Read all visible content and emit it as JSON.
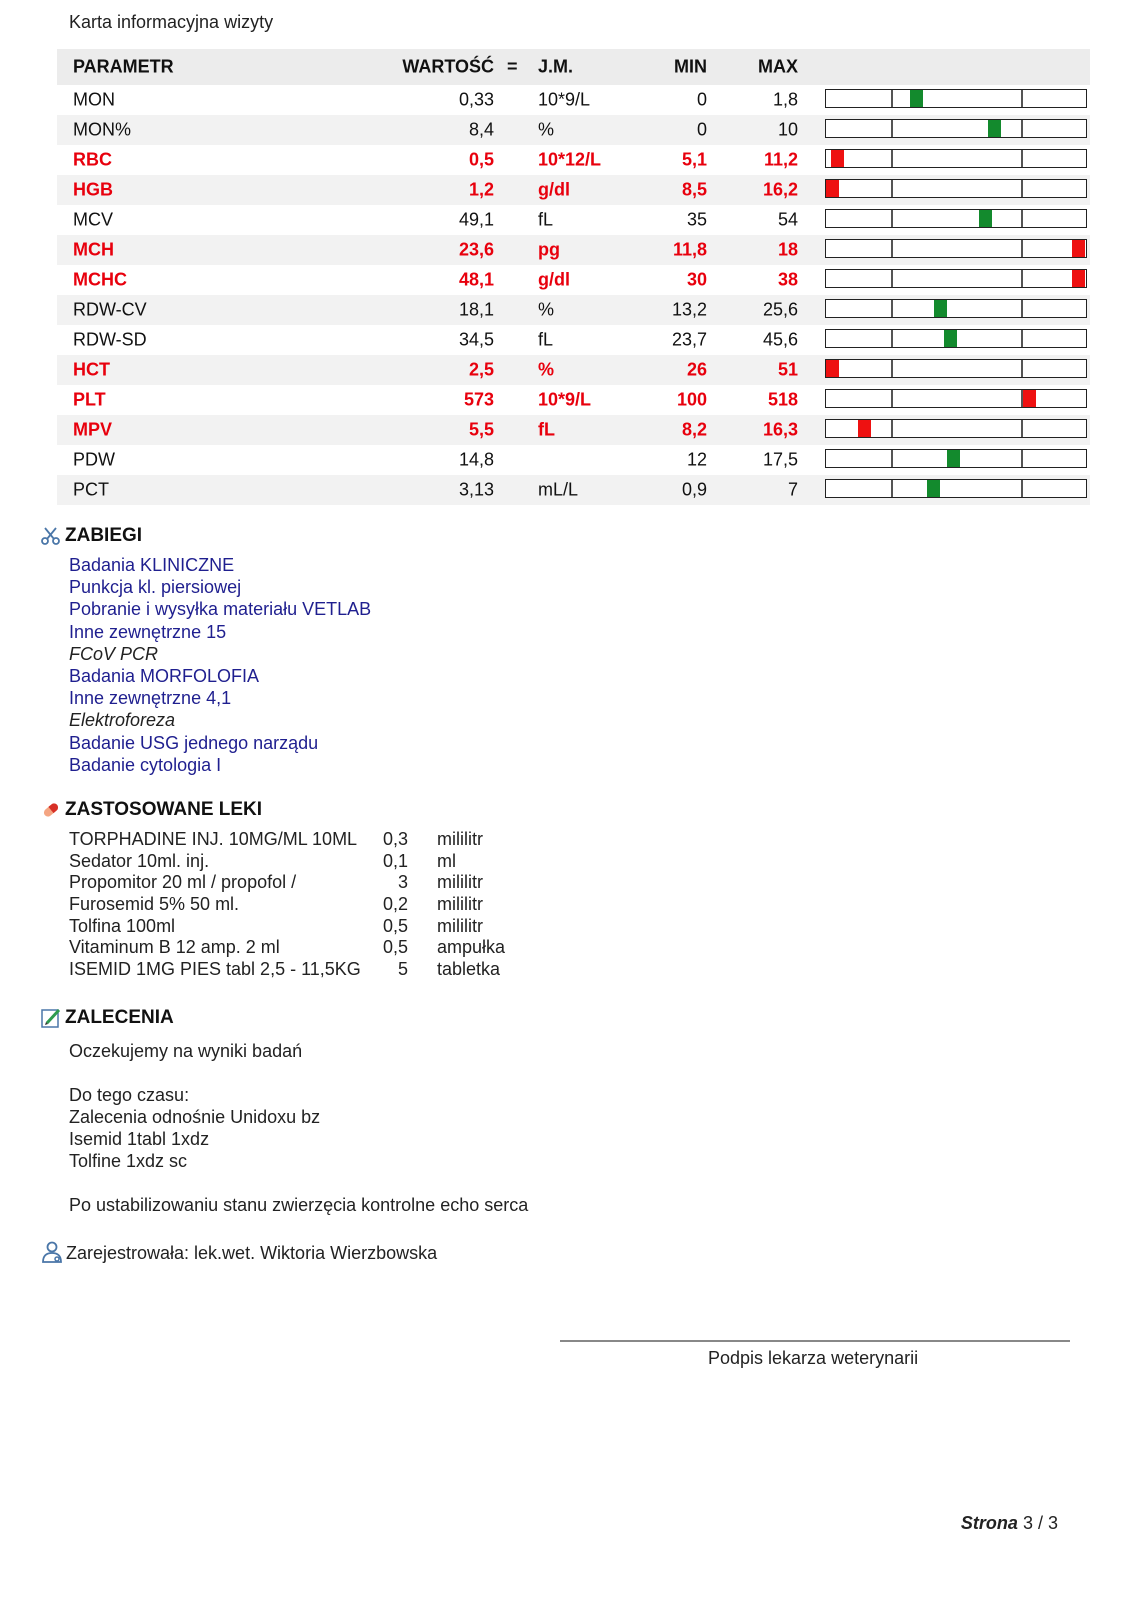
{
  "document": {
    "title": "Karta informacyjna wizyty"
  },
  "table": {
    "headers": {
      "param": "PARAMETR",
      "value": "WARTOŚĆ",
      "eq": "=",
      "unit": "J.M.",
      "min": "MIN",
      "max": "MAX"
    },
    "rows": [
      {
        "param": "MON",
        "value": "0,33",
        "unit": "10*9/L",
        "min": "0",
        "max": "1,8",
        "abnormal": false,
        "gauge": 0.34
      },
      {
        "param": "MON%",
        "value": "8,4",
        "unit": "%",
        "min": "0",
        "max": "10",
        "abnormal": false,
        "gauge": 0.66
      },
      {
        "param": "RBC",
        "value": "0,5",
        "unit": "10*12/L",
        "min": "5,1",
        "max": "11,2",
        "abnormal": true,
        "gauge": 0.02
      },
      {
        "param": "HGB",
        "value": "1,2",
        "unit": "g/dl",
        "min": "8,5",
        "max": "16,2",
        "abnormal": true,
        "gauge": 0.0
      },
      {
        "param": "MCV",
        "value": "49,1",
        "unit": "fL",
        "min": "35",
        "max": "54",
        "abnormal": false,
        "gauge": 0.62
      },
      {
        "param": "MCH",
        "value": "23,6",
        "unit": "pg",
        "min": "11,8",
        "max": "18",
        "abnormal": true,
        "gauge": 1.0
      },
      {
        "param": "MCHC",
        "value": "48,1",
        "unit": "g/dl",
        "min": "30",
        "max": "38",
        "abnormal": true,
        "gauge": 1.0
      },
      {
        "param": "RDW-CV",
        "value": "18,1",
        "unit": "%",
        "min": "13,2",
        "max": "25,6",
        "abnormal": false,
        "gauge": 0.44
      },
      {
        "param": "RDW-SD",
        "value": "34,5",
        "unit": "fL",
        "min": "23,7",
        "max": "45,6",
        "abnormal": false,
        "gauge": 0.48
      },
      {
        "param": "HCT",
        "value": "2,5",
        "unit": "%",
        "min": "26",
        "max": "51",
        "abnormal": true,
        "gauge": 0.0
      },
      {
        "param": "PLT",
        "value": "573",
        "unit": "10*9/L",
        "min": "100",
        "max": "518",
        "abnormal": true,
        "gauge": 0.8
      },
      {
        "param": "MPV",
        "value": "5,5",
        "unit": "fL",
        "min": "8,2",
        "max": "16,3",
        "abnormal": true,
        "gauge": 0.13
      },
      {
        "param": "PDW",
        "value": "14,8",
        "unit": "",
        "min": "12",
        "max": "17,5",
        "abnormal": false,
        "gauge": 0.49
      },
      {
        "param": "PCT",
        "value": "3,13",
        "unit": "mL/L",
        "min": "0,9",
        "max": "7",
        "abnormal": false,
        "gauge": 0.41
      }
    ]
  },
  "procedures": {
    "heading": "ZABIEGI",
    "icon": "scissors-icon",
    "items": [
      {
        "text": "Badania KLINICZNE",
        "italic": false
      },
      {
        "text": "Punkcja kl. piersiowej",
        "italic": false
      },
      {
        "text": "Pobranie i wysyłka materiału VETLAB",
        "italic": false
      },
      {
        "text": "Inne zewnętrzne  15",
        "italic": false
      },
      {
        "text": "FCoV PCR",
        "italic": true
      },
      {
        "text": "Badania MORFOLOFIA",
        "italic": false
      },
      {
        "text": "Inne zewnętrzne  4,1",
        "italic": false
      },
      {
        "text": "Elektroforeza",
        "italic": true
      },
      {
        "text": "Badanie USG jednego narządu",
        "italic": false
      },
      {
        "text": "Badanie cytologia I",
        "italic": false
      }
    ]
  },
  "medications": {
    "heading": "ZASTOSOWANE LEKI",
    "icon": "pill-icon",
    "items": [
      {
        "name": "TORPHADINE INJ. 10MG/ML 10ML",
        "qty": "0,3",
        "unit": "mililitr"
      },
      {
        "name": "Sedator 10ml. inj.",
        "qty": "0,1",
        "unit": "ml"
      },
      {
        "name": "Propomitor 20 ml / propofol /",
        "qty": "3",
        "unit": "mililitr"
      },
      {
        "name": "Furosemid 5% 50 ml.",
        "qty": "0,2",
        "unit": "mililitr"
      },
      {
        "name": "Tolfina 100ml",
        "qty": "0,5",
        "unit": "mililitr"
      },
      {
        "name": "Vitaminum B 12 amp. 2 ml",
        "qty": "0,5",
        "unit": "ampułka"
      },
      {
        "name": "ISEMID 1MG PIES tabl 2,5 - 11,5KG",
        "qty": "5",
        "unit": "tabletka"
      }
    ]
  },
  "recommendations": {
    "heading": "ZALECENIA",
    "icon": "notepad-pencil-icon",
    "lines": [
      "Oczekujemy na wyniki badań",
      "",
      "Do tego czasu:",
      "Zalecenia odnośnie Unidoxu bz",
      "Isemid 1tabl 1xdz",
      "Tolfine 1xdz sc",
      "",
      "Po ustabilizowaniu stanu zwierzęcia kontrolne echo serca"
    ]
  },
  "registered": {
    "icon": "doctor-icon",
    "text": "Zarejestrowała: lek.wet. Wiktoria Wierzbowska"
  },
  "signature": {
    "label": "Podpis lekarza weterynarii"
  },
  "page": {
    "label": "Strona",
    "current": "3",
    "total": "/ 3"
  },
  "colors": {
    "abnormal": "#e8000d",
    "ok_marker": "#138a2d",
    "bad_marker": "#ee1111",
    "procedure_text": "#1f1f8f"
  }
}
